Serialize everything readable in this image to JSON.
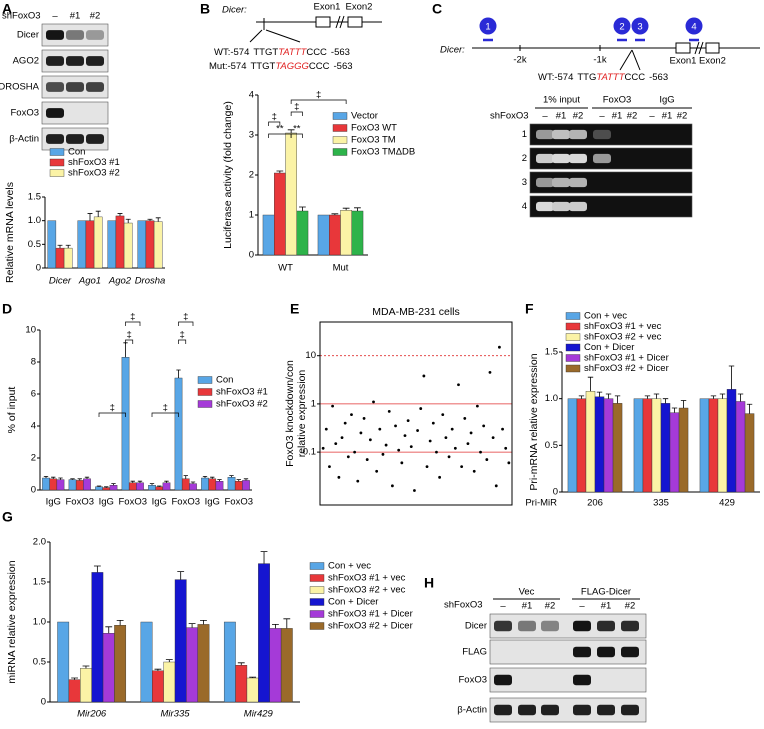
{
  "panel_labels": [
    "A",
    "B",
    "C",
    "D",
    "E",
    "F",
    "G",
    "H"
  ],
  "blot_a": {
    "group_label": "shFoxO3",
    "lanes": [
      "–",
      "#1",
      "#2"
    ],
    "rows": [
      "Dicer",
      "AGO2",
      "DROSHA",
      "FoxO3",
      "β-Actin"
    ]
  },
  "diagram_b": {
    "gene": "Dicer:",
    "exons": [
      "Exon1",
      "Exon2"
    ],
    "wt": {
      "prefix": "WT:-574",
      "left": "TTGT",
      "site": "TATTT",
      "right": "CCC",
      "suffix": "-563"
    },
    "mut": {
      "prefix": "Mut:-574",
      "left": "TTGT",
      "site": "TAGGG",
      "right": "CCC",
      "suffix": "-563"
    }
  },
  "diagram_c": {
    "sites": [
      "1",
      "2",
      "3",
      "4"
    ],
    "gene": "Dicer:",
    "scale": [
      "-2k",
      "-1k"
    ],
    "exons": [
      "Exon1",
      "Exon2"
    ],
    "wt": {
      "prefix": "WT:-574",
      "left": "TTG",
      "site": "TATTT",
      "right": "CCC",
      "suffix": "-563"
    }
  },
  "gel_c": {
    "groups": [
      "1% input",
      "FoxO3",
      "IgG"
    ],
    "row_label": "shFoxO3",
    "lanes": [
      "–",
      "#1",
      "#2"
    ],
    "rows": [
      "1",
      "2",
      "3",
      "4"
    ]
  },
  "blot_h": {
    "groups": [
      "Vec",
      "FLAG-Dicer"
    ],
    "row_label": "shFoxO3",
    "lanes": [
      "–",
      "#1",
      "#2",
      "–",
      "#1",
      "#2"
    ],
    "rows": [
      "Dicer",
      "FLAG",
      "FoxO3",
      "β-Actin"
    ]
  },
  "chart_data": [
    {
      "type": "bar",
      "ylabel": "Relative mRNA levels",
      "categories": [
        "Dicer",
        "Ago1",
        "Ago2",
        "Drosha"
      ],
      "category_italic": true,
      "ylim": [
        0,
        1.5
      ],
      "yticks": [
        0,
        0.5,
        {
          "value": 1,
          "label": "1.0"
        },
        1.5
      ],
      "series": [
        {
          "name": "Con",
          "color": "#58a6e6",
          "values": [
            1,
            1,
            1,
            1
          ],
          "errors": [
            0,
            0,
            0,
            0
          ]
        },
        {
          "name": "shFoxO3 #1",
          "color": "#e8373a",
          "values": [
            0.42,
            1.0,
            1.1,
            1.0
          ],
          "errors": [
            0.06,
            0.15,
            0.05,
            0.03
          ]
        },
        {
          "name": "shFoxO3 #2",
          "color": "#fbf3a6",
          "values": [
            0.42,
            1.08,
            0.95,
            0.98
          ],
          "errors": [
            0.06,
            0.12,
            0.08,
            0.08
          ]
        }
      ]
    },
    {
      "type": "bar",
      "ylabel": "Luciferase activity (fold change)",
      "categories": [
        "WT",
        "Mut"
      ],
      "ylim": [
        0,
        4
      ],
      "yticks": [
        0,
        1,
        2,
        3,
        4
      ],
      "annotations": [
        "‡",
        "‡",
        "**",
        "**",
        "‡"
      ],
      "series": [
        {
          "name": "Vector",
          "color": "#58a6e6",
          "values": [
            1,
            1
          ],
          "errors": [
            0,
            0
          ]
        },
        {
          "name": "FoxO3 WT",
          "color": "#e8373a",
          "values": [
            2.05,
            1.0
          ],
          "errors": [
            0.05,
            0.03
          ]
        },
        {
          "name": "FoxO3 TM",
          "color": "#fbf3a6",
          "values": [
            3.05,
            1.12
          ],
          "errors": [
            0.08,
            0.05
          ]
        },
        {
          "name": "FoxO3 TMΔDB",
          "color": "#2db34a",
          "values": [
            1.1,
            1.1
          ],
          "errors": [
            0.1,
            0.08
          ]
        }
      ]
    },
    {
      "type": "bar",
      "ylabel": "% of input",
      "categories": [
        "IgG",
        "FoxO3",
        "IgG",
        "FoxO3",
        "IgG",
        "FoxO3",
        "IgG",
        "FoxO3"
      ],
      "ylim": [
        0,
        10
      ],
      "yticks": [
        0,
        2,
        4,
        6,
        8,
        10
      ],
      "annotations": [
        "‡",
        "‡",
        "‡",
        "‡",
        "‡",
        "‡"
      ],
      "series": [
        {
          "name": "Con",
          "color": "#58a6e6",
          "values": [
            0.75,
            0.65,
            0.2,
            8.3,
            0.3,
            7.0,
            0.75,
            0.8
          ],
          "errors": [
            0.1,
            0.05,
            0.05,
            0.9,
            0.1,
            0.5,
            0.1,
            0.1
          ]
        },
        {
          "name": "shFoxO3 #1",
          "color": "#e8373a",
          "values": [
            0.7,
            0.6,
            0.15,
            0.45,
            0.2,
            0.7,
            0.7,
            0.55
          ],
          "errors": [
            0.1,
            0.1,
            0.05,
            0.1,
            0.05,
            0.2,
            0.1,
            0.1
          ]
        },
        {
          "name": "shFoxO3 #2",
          "color": "#a53ad8",
          "values": [
            0.65,
            0.7,
            0.3,
            0.45,
            0.45,
            0.4,
            0.55,
            0.6
          ],
          "errors": [
            0.1,
            0.1,
            0.1,
            0.1,
            0.1,
            0.1,
            0.1,
            0.1
          ]
        }
      ]
    },
    {
      "type": "scatter",
      "title": "MDA-MB-231 cells",
      "ylabel_lines": [
        "FoxO3 knockdown/con",
        "relative expression"
      ],
      "log_y": true,
      "ylim": [
        0.008,
        50
      ],
      "yticks": [
        0.1,
        1,
        10
      ],
      "xlim": [
        0,
        61
      ],
      "grid": true,
      "grid_color": "#e03030",
      "color": "#000000",
      "x": [
        1,
        2,
        3,
        4,
        5,
        6,
        7,
        8,
        9,
        10,
        11,
        12,
        13,
        14,
        15,
        16,
        17,
        18,
        19,
        20,
        21,
        22,
        23,
        24,
        25,
        26,
        27,
        28,
        29,
        30,
        31,
        32,
        33,
        34,
        35,
        36,
        37,
        38,
        39,
        40,
        41,
        42,
        43,
        44,
        45,
        46,
        47,
        48,
        49,
        50,
        51,
        52,
        53,
        54,
        55,
        56,
        57,
        58,
        59,
        60
      ],
      "values": [
        0.12,
        0.3,
        0.05,
        0.9,
        0.15,
        0.03,
        0.2,
        0.4,
        0.08,
        0.6,
        0.1,
        0.025,
        0.25,
        0.5,
        0.07,
        0.18,
        1.1,
        0.04,
        0.3,
        0.09,
        0.14,
        0.7,
        0.02,
        0.35,
        0.11,
        0.06,
        0.22,
        0.45,
        0.13,
        0.016,
        0.28,
        0.8,
        3.8,
        0.05,
        0.17,
        0.4,
        0.1,
        0.03,
        0.6,
        0.2,
        0.08,
        0.3,
        0.12,
        2.5,
        0.05,
        0.5,
        0.15,
        0.25,
        0.04,
        0.9,
        0.1,
        0.35,
        0.07,
        4.5,
        0.2,
        0.02,
        15,
        0.3,
        0.12,
        0.06
      ]
    },
    {
      "type": "bar",
      "ylabel": "Pri-mRNA relative expression",
      "xlabel": "Pri-MiR",
      "categories": [
        "206",
        "335",
        "429"
      ],
      "ylim": [
        0,
        1.5
      ],
      "yticks": [
        0,
        0.5,
        {
          "value": 1,
          "label": "1.0"
        },
        1.5
      ],
      "series": [
        {
          "name": "Con + vec",
          "color": "#58a6e6",
          "values": [
            1,
            1,
            1
          ],
          "errors": [
            0,
            0,
            0
          ]
        },
        {
          "name": "shFoxO3 #1 + vec",
          "color": "#e8373a",
          "values": [
            1,
            1,
            1
          ],
          "errors": [
            0.03,
            0.03,
            0.03
          ]
        },
        {
          "name": "shFoxO3 #2 + vec",
          "color": "#fbf3a6",
          "values": [
            1.08,
            1.0,
            1.0
          ],
          "errors": [
            0.15,
            0.05,
            0.05
          ]
        },
        {
          "name": "Con + Dicer",
          "color": "#1515d0",
          "values": [
            1.02,
            0.95,
            1.1
          ],
          "errors": [
            0.05,
            0.05,
            0.25
          ]
        },
        {
          "name": "shFoxO3 #1 + Dicer",
          "color": "#a53ad8",
          "values": [
            1.0,
            0.85,
            0.97
          ],
          "errors": [
            0.05,
            0.05,
            0.08
          ]
        },
        {
          "name": "shFoxO3 #2 + Dicer",
          "color": "#9a6a2a",
          "values": [
            0.95,
            0.9,
            0.84
          ],
          "errors": [
            0.08,
            0.08,
            0.1
          ]
        }
      ]
    },
    {
      "type": "bar",
      "ylabel": "miRNA relative expression",
      "categories": [
        "Mir206",
        "Mir335",
        "Mir429"
      ],
      "category_italic": true,
      "ylim": [
        0,
        2
      ],
      "yticks": [
        0,
        0.5,
        {
          "value": 1,
          "label": "1.0"
        },
        1.5,
        {
          "value": 2,
          "label": "2.0"
        }
      ],
      "series": [
        {
          "name": "Con + vec",
          "color": "#58a6e6",
          "values": [
            1,
            1,
            1
          ],
          "errors": [
            0,
            0,
            0
          ]
        },
        {
          "name": "shFoxO3 #1 + vec",
          "color": "#e8373a",
          "values": [
            0.28,
            0.39,
            0.46
          ],
          "errors": [
            0.02,
            0.02,
            0.03
          ]
        },
        {
          "name": "shFoxO3 #2 + vec",
          "color": "#fbf3a6",
          "values": [
            0.42,
            0.5,
            0.3
          ],
          "errors": [
            0.03,
            0.03,
            0.01
          ]
        },
        {
          "name": "Con + Dicer",
          "color": "#1515d0",
          "values": [
            1.62,
            1.53,
            1.73
          ],
          "errors": [
            0.08,
            0.1,
            0.15
          ]
        },
        {
          "name": "shFoxO3 #1 + Dicer",
          "color": "#a53ad8",
          "values": [
            0.86,
            0.93,
            0.92
          ],
          "errors": [
            0.08,
            0.05,
            0.05
          ]
        },
        {
          "name": "shFoxO3 #2 + Dicer",
          "color": "#9a6a2a",
          "values": [
            0.96,
            0.97,
            0.92
          ],
          "errors": [
            0.06,
            0.05,
            0.12
          ]
        }
      ]
    }
  ]
}
